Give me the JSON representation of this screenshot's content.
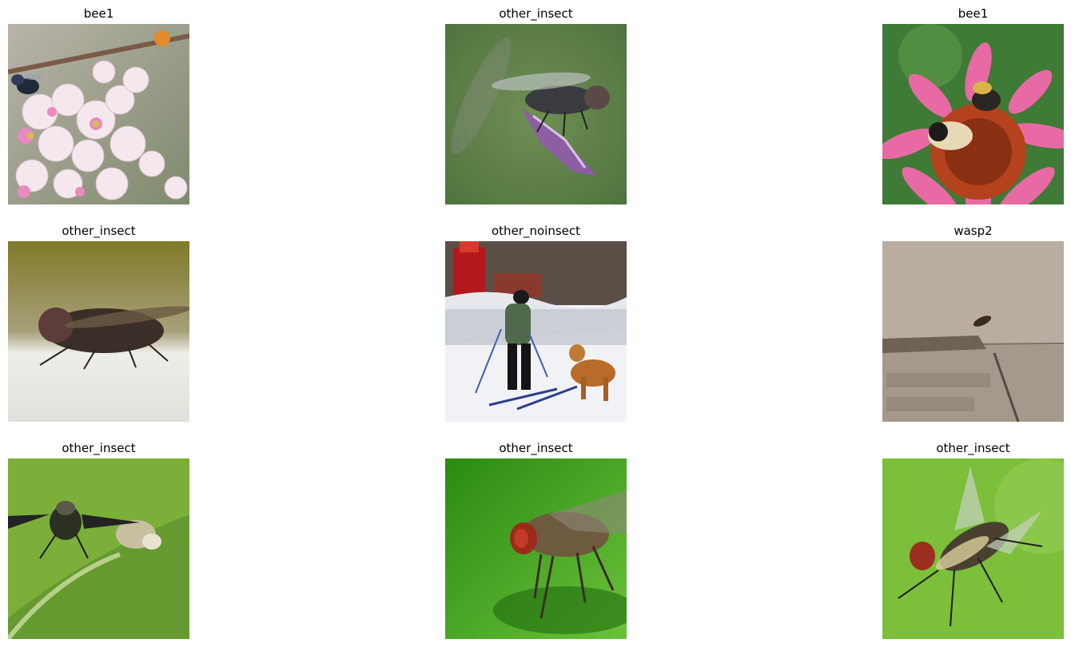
{
  "images": [
    {
      "label": "bee1"
    },
    {
      "label": "other_insect"
    },
    {
      "label": "bee1"
    },
    {
      "label": "other_insect"
    },
    {
      "label": "other_noinsect"
    },
    {
      "label": "wasp2"
    },
    {
      "label": "other_insect"
    },
    {
      "label": "other_insect"
    },
    {
      "label": "other_insect"
    }
  ]
}
